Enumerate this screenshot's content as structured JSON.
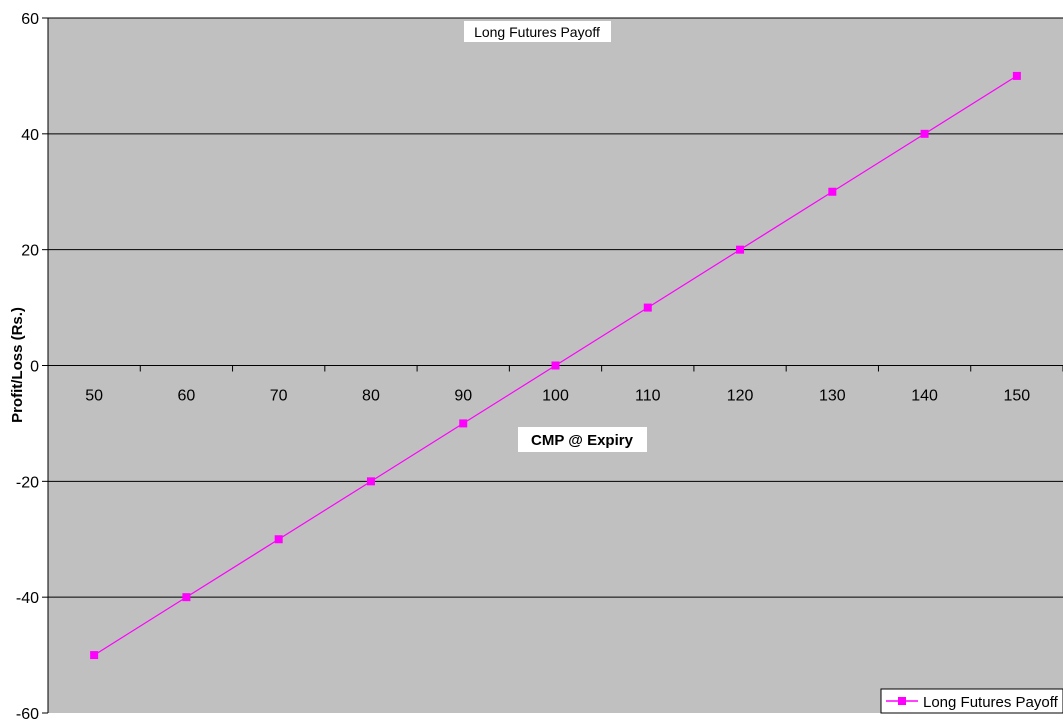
{
  "chart_data": {
    "type": "line",
    "title": "Long Futures Payoff",
    "xlabel": "CMP @ Expiry",
    "ylabel": "Profit/Loss (Rs.)",
    "x": [
      50,
      60,
      70,
      80,
      90,
      100,
      110,
      120,
      130,
      140,
      150
    ],
    "series": [
      {
        "name": "Long Futures Payoff",
        "values": [
          -50,
          -40,
          -30,
          -20,
          -10,
          0,
          10,
          20,
          30,
          40,
          50
        ],
        "color": "#ff00ff",
        "marker": "square"
      }
    ],
    "ylim": [
      -60,
      60
    ],
    "yticks": [
      -60,
      -40,
      -20,
      0,
      20,
      40,
      60
    ],
    "grid": true,
    "legend": "bottom-right",
    "plot_background": "#c0c0c0"
  }
}
